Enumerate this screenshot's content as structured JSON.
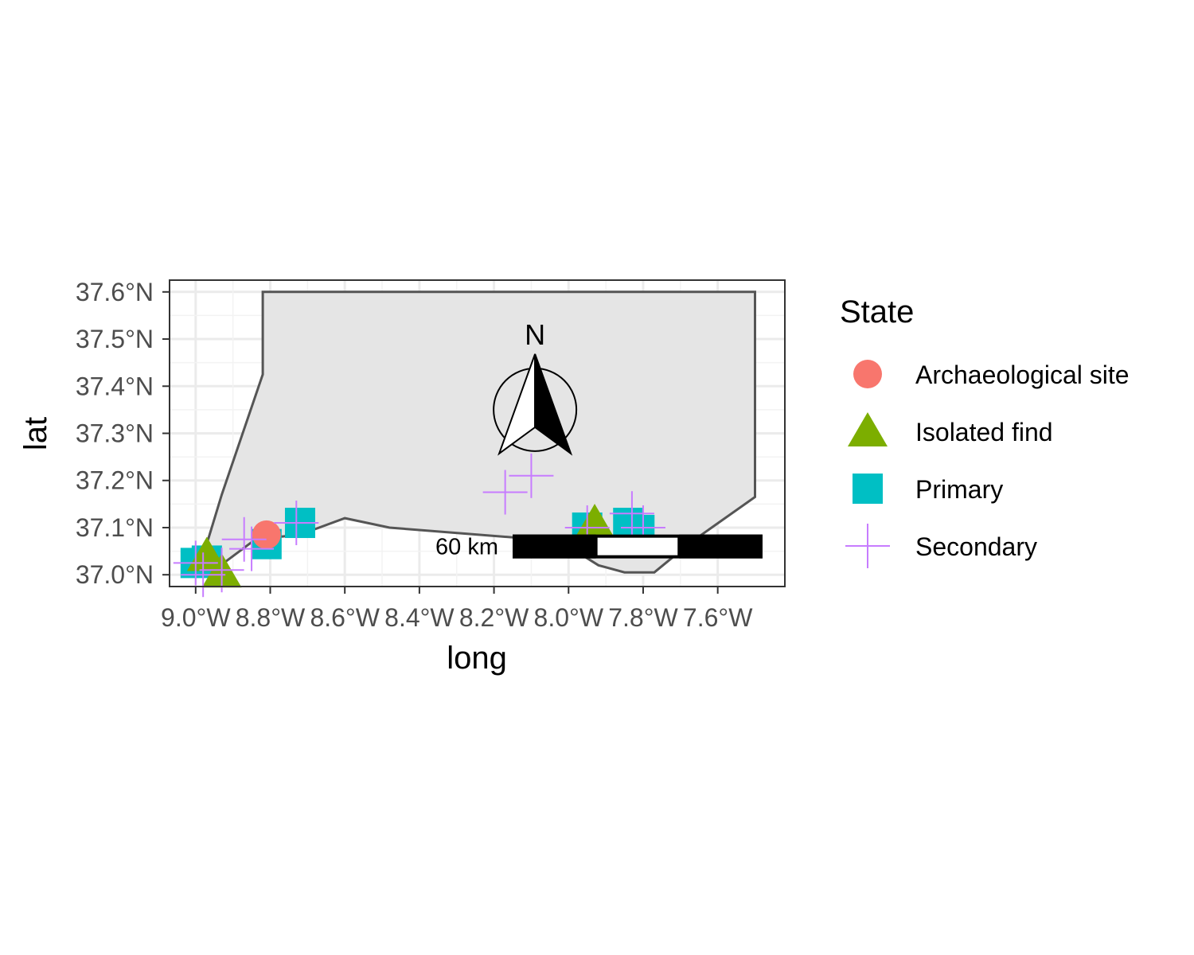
{
  "chart_data": {
    "type": "scatter",
    "xlabel": "long",
    "ylabel": "lat",
    "xlim": [
      -9.07,
      -7.42
    ],
    "ylim": [
      36.975,
      37.625
    ],
    "grid": true,
    "x_ticks": [
      {
        "value": -9.0,
        "label": "9.0°W"
      },
      {
        "value": -8.8,
        "label": "8.8°W"
      },
      {
        "value": -8.6,
        "label": "8.6°W"
      },
      {
        "value": -8.4,
        "label": "8.4°W"
      },
      {
        "value": -8.2,
        "label": "8.2°W"
      },
      {
        "value": -8.0,
        "label": "8.0°W"
      },
      {
        "value": -7.8,
        "label": "7.8°W"
      },
      {
        "value": -7.6,
        "label": "7.6°W"
      }
    ],
    "y_ticks": [
      {
        "value": 37.0,
        "label": "37.0°N"
      },
      {
        "value": 37.1,
        "label": "37.1°N"
      },
      {
        "value": 37.2,
        "label": "37.2°N"
      },
      {
        "value": 37.3,
        "label": "37.3°N"
      },
      {
        "value": 37.4,
        "label": "37.4°N"
      },
      {
        "value": 37.5,
        "label": "37.5°N"
      },
      {
        "value": 37.6,
        "label": "37.6°N"
      }
    ],
    "region_outline": [
      [
        -8.82,
        37.6
      ],
      [
        -7.5,
        37.6
      ],
      [
        -7.5,
        37.165
      ],
      [
        -7.67,
        37.07
      ],
      [
        -7.77,
        37.005
      ],
      [
        -7.85,
        37.005
      ],
      [
        -7.92,
        37.02
      ],
      [
        -7.98,
        37.05
      ],
      [
        -8.08,
        37.075
      ],
      [
        -8.48,
        37.1
      ],
      [
        -8.6,
        37.12
      ],
      [
        -8.72,
        37.085
      ],
      [
        -8.84,
        37.075
      ],
      [
        -8.95,
        37.01
      ],
      [
        -8.98,
        37.04
      ],
      [
        -8.93,
        37.17
      ],
      [
        -8.82,
        37.425
      ],
      [
        -8.82,
        37.6
      ]
    ],
    "legend": {
      "title": "State",
      "position": "right",
      "entries": [
        {
          "label": "Archaeological site",
          "shape": "circle",
          "color": "#F8766D"
        },
        {
          "label": "Isolated find",
          "shape": "triangle",
          "color": "#7CAE00"
        },
        {
          "label": "Primary",
          "shape": "square",
          "color": "#00BFC4"
        },
        {
          "label": "Secondary",
          "shape": "plus",
          "color": "#C77CFF"
        }
      ]
    },
    "series": [
      {
        "name": "Primary",
        "shape": "square",
        "color": "#00BFC4",
        "points": [
          {
            "x": -9.0,
            "y": 37.025
          },
          {
            "x": -8.97,
            "y": 37.03
          },
          {
            "x": -8.81,
            "y": 37.065
          },
          {
            "x": -8.72,
            "y": 37.11
          },
          {
            "x": -7.95,
            "y": 37.1
          },
          {
            "x": -7.84,
            "y": 37.11
          },
          {
            "x": -7.81,
            "y": 37.095
          }
        ]
      },
      {
        "name": "Isolated find",
        "shape": "triangle",
        "color": "#7CAE00",
        "points": [
          {
            "x": -8.97,
            "y": 37.04
          },
          {
            "x": -8.93,
            "y": 37.005
          },
          {
            "x": -7.93,
            "y": 37.11
          }
        ]
      },
      {
        "name": "Archaeological site",
        "shape": "circle",
        "color": "#F8766D",
        "points": [
          {
            "x": -8.81,
            "y": 37.085
          }
        ]
      },
      {
        "name": "Secondary",
        "shape": "plus",
        "color": "#C77CFF",
        "points": [
          {
            "x": -9.0,
            "y": 37.025
          },
          {
            "x": -8.98,
            "y": 37.0
          },
          {
            "x": -8.93,
            "y": 37.01
          },
          {
            "x": -8.87,
            "y": 37.075
          },
          {
            "x": -8.85,
            "y": 37.055
          },
          {
            "x": -8.73,
            "y": 37.11
          },
          {
            "x": -8.17,
            "y": 37.175
          },
          {
            "x": -8.1,
            "y": 37.21
          },
          {
            "x": -7.95,
            "y": 37.1
          },
          {
            "x": -7.83,
            "y": 37.13
          },
          {
            "x": -7.8,
            "y": 37.1
          }
        ]
      }
    ],
    "north_arrow": {
      "label": "N",
      "lon": -8.09,
      "lat": 37.35
    },
    "scale_bar": {
      "label": "60 km",
      "segments": [
        "black",
        "white",
        "black"
      ],
      "start_lon": -8.15,
      "end_lon": -7.48,
      "lat": 37.06
    }
  }
}
